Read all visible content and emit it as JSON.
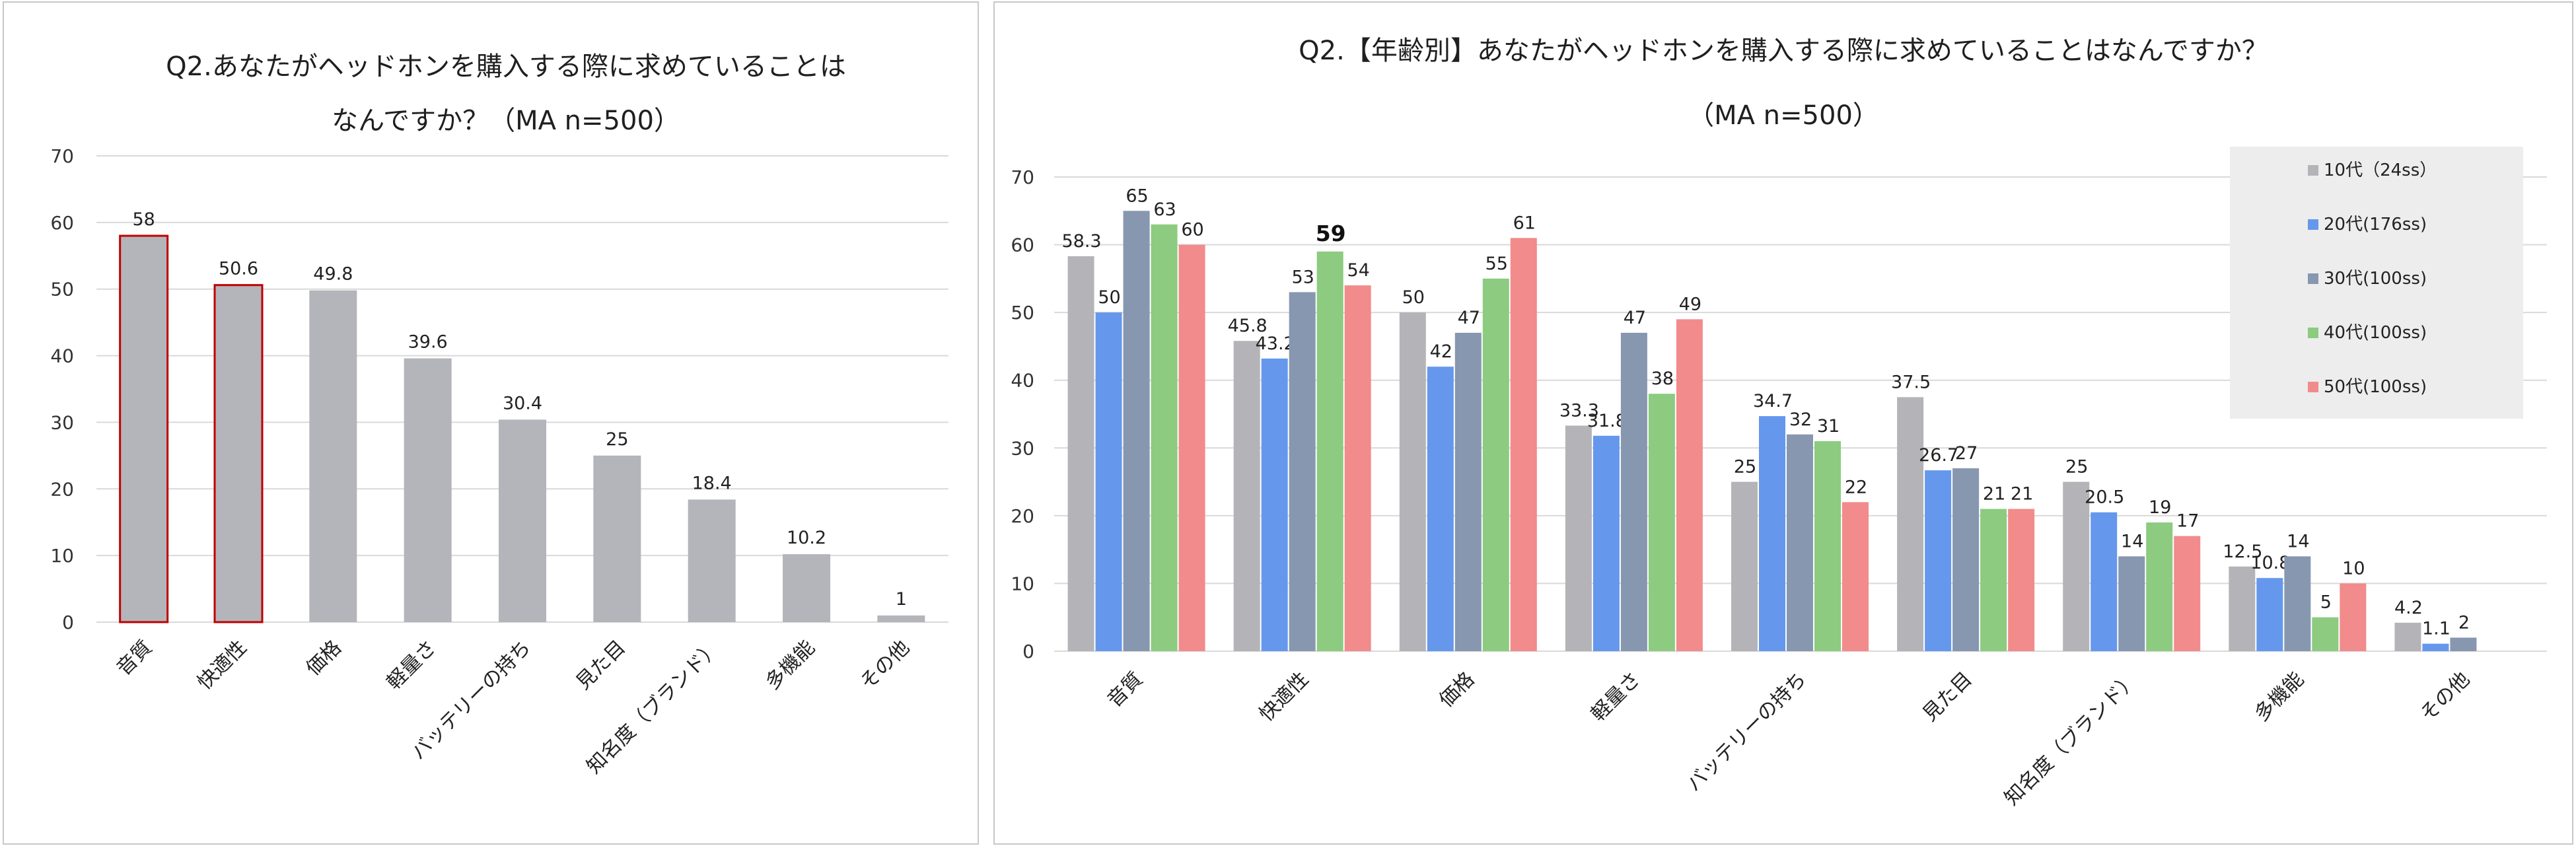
{
  "colors": {
    "gray_bar": "#B4B4BB",
    "highlight_outline": "#C00000",
    "s10": "#B4B4B8",
    "s20": "#6598EC",
    "s30": "#8797B0",
    "s40": "#8CCB80",
    "s50": "#F28B8B",
    "grid": "#D9D9D9",
    "legend_bg": "#EDEDED"
  },
  "chart_data": [
    {
      "type": "bar",
      "title_line1": "Q2.あなたがヘッドホンを購入する際に求めていることは",
      "title_line2": "なんですか？（MA n=500）",
      "categories": [
        "音質",
        "快適性",
        "価格",
        "軽量さ",
        "バッテリーの持ち",
        "見た目",
        "知名度（ブランド）",
        "多機能",
        "その他"
      ],
      "values": [
        58,
        50.6,
        49.8,
        39.6,
        30.4,
        25,
        18.4,
        10.2,
        1
      ],
      "data_labels": [
        "58",
        "50.6",
        "49.8",
        "39.6",
        "30.4",
        "25",
        "18.4",
        "10.2",
        "1"
      ],
      "highlighted": [
        true,
        true,
        false,
        false,
        false,
        false,
        false,
        false,
        false
      ],
      "ylim": [
        0,
        70
      ],
      "yticks": [
        0,
        10,
        20,
        30,
        40,
        50,
        60,
        70
      ],
      "grid": true
    },
    {
      "type": "bar",
      "title_line1": "Q2.【年齢別】あなたがヘッドホンを購入する際に求めていることはなんですか？",
      "title_line2": "（MA n=500）",
      "categories": [
        "音質",
        "快適性",
        "価格",
        "軽量さ",
        "バッテリーの持ち",
        "見た目",
        "知名度（ブランド）",
        "多機能",
        "その他"
      ],
      "series": [
        {
          "name": "10代（24ss）",
          "color_key": "s10",
          "values": [
            58.3,
            45.8,
            50,
            33.3,
            25,
            37.5,
            25,
            12.5,
            4.2
          ],
          "labels": [
            "58.3",
            "45.8",
            "50",
            "33.3",
            "25",
            "37.5",
            "25",
            "12.5",
            "4.2"
          ]
        },
        {
          "name": "20代(176ss)",
          "color_key": "s20",
          "values": [
            50,
            43.2,
            42,
            31.8,
            34.7,
            26.7,
            20.5,
            10.8,
            1.1
          ],
          "labels": [
            "50",
            "43.2",
            "42",
            "31.8",
            "34.7",
            "26.7",
            "20.5",
            "10.8",
            "1.1"
          ]
        },
        {
          "name": "30代(100ss)",
          "color_key": "s30",
          "values": [
            65,
            53,
            47,
            47,
            32,
            27,
            14,
            14,
            2
          ],
          "labels": [
            "65",
            "53",
            "47",
            "47",
            "32",
            "27",
            "14",
            "14",
            "2"
          ]
        },
        {
          "name": "40代(100ss)",
          "color_key": "s40",
          "values": [
            63,
            59,
            55,
            38,
            31,
            21,
            19,
            5,
            0
          ],
          "labels": [
            "63",
            "59",
            "55",
            "38",
            "31",
            "21",
            "19",
            "5",
            ""
          ]
        },
        {
          "name": "50代(100ss)",
          "color_key": "s50",
          "values": [
            60,
            54,
            61,
            49,
            22,
            21,
            17,
            10,
            0
          ],
          "labels": [
            "60",
            "54",
            "61",
            "49",
            "22",
            "21",
            "17",
            "10",
            ""
          ]
        }
      ],
      "bold_label": {
        "series": 3,
        "category": 1
      },
      "ylim": [
        0,
        70
      ],
      "yticks": [
        0,
        10,
        20,
        30,
        40,
        50,
        60,
        70
      ],
      "grid": true,
      "legend_position": "top-right"
    }
  ]
}
